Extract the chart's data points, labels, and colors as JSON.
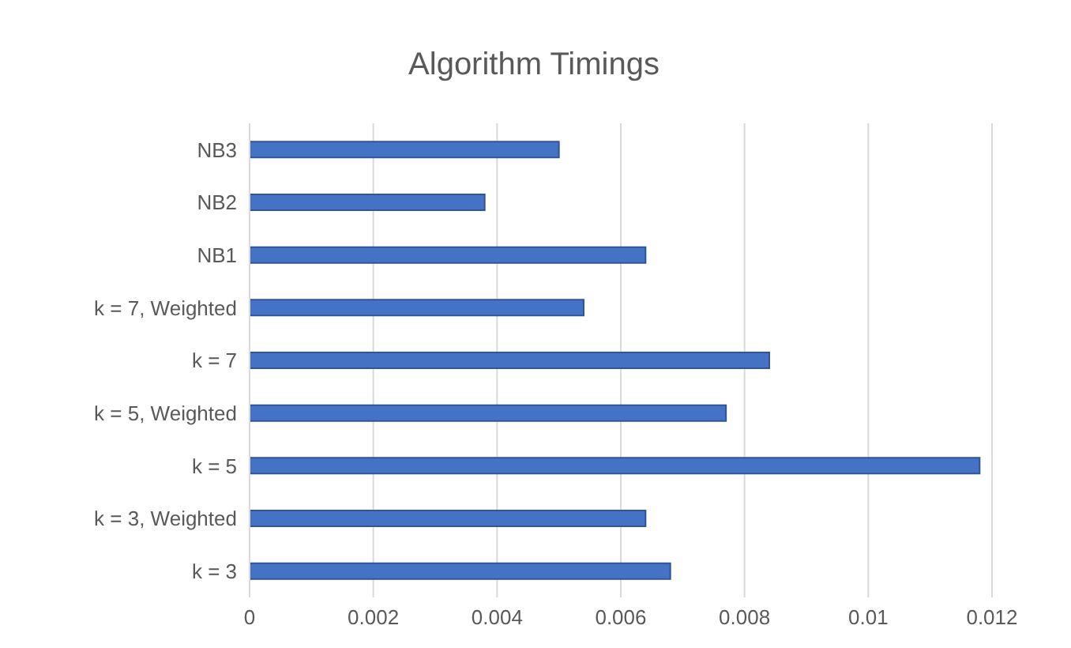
{
  "chart_data": {
    "type": "bar",
    "title": "Algorithm Timings",
    "orientation": "horizontal",
    "categories": [
      "NB3",
      "NB2",
      "NB1",
      "k = 7, Weighted",
      "k = 7",
      "k = 5, Weighted",
      "k = 5",
      "k = 3, Weighted",
      "k = 3"
    ],
    "values": [
      0.005,
      0.0038,
      0.0064,
      0.0054,
      0.0084,
      0.0077,
      0.0118,
      0.0064,
      0.0068
    ],
    "color": "#4472c4",
    "xlim": [
      0,
      0.012
    ],
    "xticks": [
      0,
      0.002,
      0.004,
      0.006,
      0.008,
      0.01,
      0.012
    ],
    "grid": "x"
  }
}
